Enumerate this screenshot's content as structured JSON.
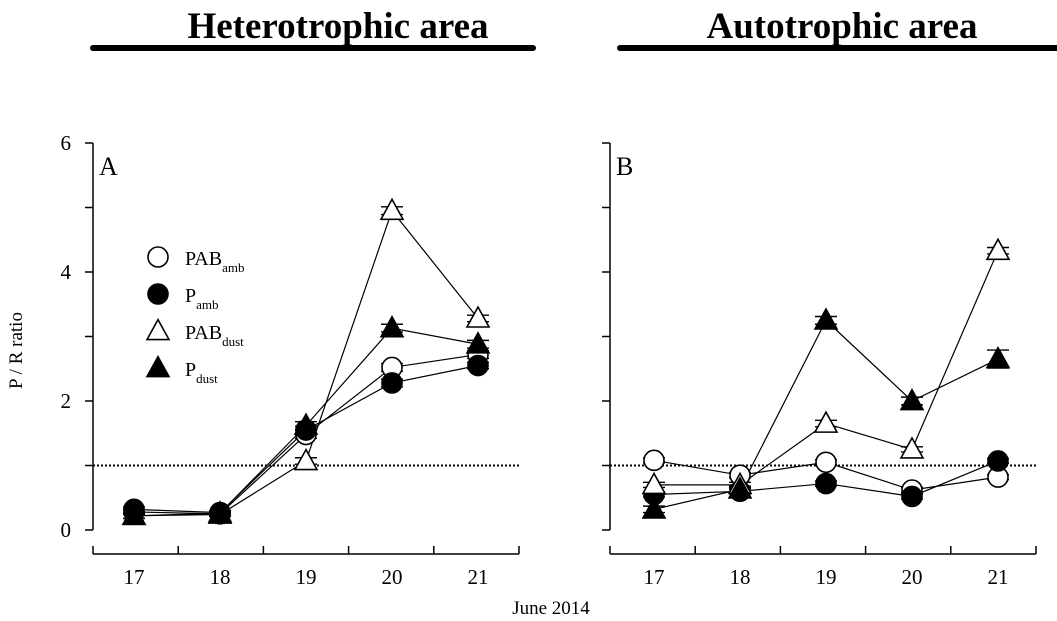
{
  "chart_data": {
    "type": "line",
    "shared_xlabel": "June 2014",
    "reference_line": {
      "y": 1,
      "style": "dotted"
    },
    "series_styles": {
      "PAB_amb": {
        "marker": "circle",
        "fill": "none"
      },
      "P_amb": {
        "marker": "circle",
        "fill": "#000000"
      },
      "PAB_dust": {
        "marker": "triangle",
        "fill": "none"
      },
      "P_dust": {
        "marker": "triangle",
        "fill": "#000000"
      }
    },
    "legend": [
      {
        "key": "PAB_amb",
        "base": "PAB",
        "sub": "amb"
      },
      {
        "key": "P_amb",
        "base": "P",
        "sub": "amb"
      },
      {
        "key": "PAB_dust",
        "base": "PAB",
        "sub": "dust"
      },
      {
        "key": "P_dust",
        "base": "P",
        "sub": "dust"
      }
    ],
    "panels": [
      {
        "heading": "Heterotrophic area",
        "label": "A",
        "ylabel": "P / R ratio",
        "ylim": [
          0,
          6
        ],
        "yticks": [
          0,
          2,
          4,
          6
        ],
        "x": [
          17,
          18,
          19,
          20,
          21
        ],
        "series": [
          {
            "key": "PAB_amb",
            "values": [
              0.28,
              0.25,
              1.48,
              2.52,
              2.72
            ],
            "errors": [
              0.04,
              0.03,
              0.06,
              0.06,
              0.06
            ]
          },
          {
            "key": "P_amb",
            "values": [
              0.32,
              0.27,
              1.55,
              2.28,
              2.55
            ],
            "errors": [
              0.04,
              0.03,
              0.06,
              0.06,
              0.05
            ]
          },
          {
            "key": "PAB_dust",
            "values": [
              0.22,
              0.24,
              1.07,
              4.95,
              3.28
            ],
            "errors": [
              0.04,
              0.03,
              0.05,
              0.06,
              0.05
            ]
          },
          {
            "key": "P_dust",
            "values": [
              0.22,
              0.26,
              1.62,
              3.13,
              2.88
            ],
            "errors": [
              0.04,
              0.03,
              0.06,
              0.06,
              0.06
            ]
          }
        ]
      },
      {
        "heading": "Autotrophic area",
        "label": "B",
        "ylim": [
          0,
          6
        ],
        "yticks": [
          0,
          2,
          4,
          6
        ],
        "x": [
          17,
          18,
          19,
          20,
          21
        ],
        "series": [
          {
            "key": "PAB_amb",
            "values": [
              1.08,
              0.85,
              1.05,
              0.62,
              0.82
            ],
            "errors": [
              0.04,
              0.04,
              0.04,
              0.04,
              0.04
            ]
          },
          {
            "key": "P_amb",
            "values": [
              0.55,
              0.6,
              0.72,
              0.52,
              1.07
            ],
            "errors": [
              0.04,
              0.04,
              0.04,
              0.04,
              0.04
            ]
          },
          {
            "key": "PAB_dust",
            "values": [
              0.7,
              0.7,
              1.65,
              1.25,
              4.33
            ],
            "errors": [
              0.04,
              0.04,
              0.05,
              0.04,
              0.05
            ]
          },
          {
            "key": "P_dust",
            "values": [
              0.32,
              0.63,
              3.25,
              2.0,
              2.65
            ],
            "errors": [
              0.05,
              0.05,
              0.06,
              0.06,
              0.14
            ]
          }
        ]
      }
    ]
  }
}
